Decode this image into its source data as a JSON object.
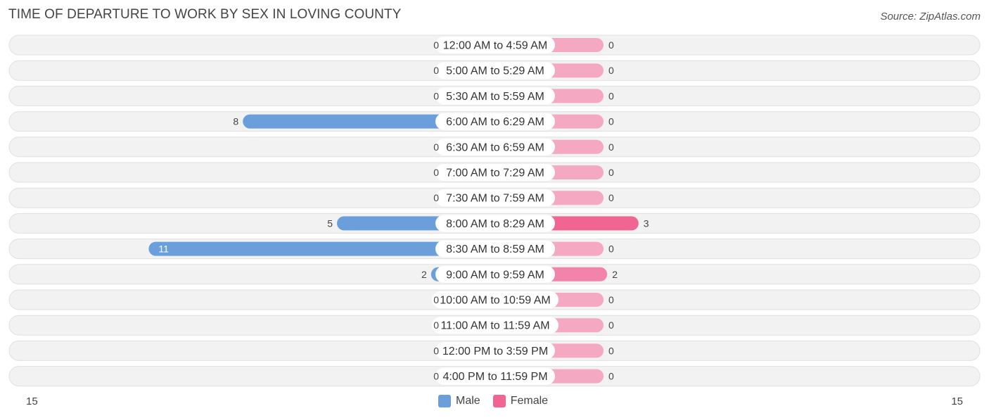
{
  "title": "TIME OF DEPARTURE TO WORK BY SEX IN LOVING COUNTY",
  "source": "Source: ZipAtlas.com",
  "colors": {
    "male_strong": "#6a9fdb",
    "male_light": "#a9c8ea",
    "female_strong": "#f06591",
    "female_light": "#f5a8c2",
    "row_bg": "#f2f2f2",
    "row_border": "#e0e0e0"
  },
  "chart_data": {
    "type": "bar",
    "orientation": "diverging-horizontal",
    "title": "TIME OF DEPARTURE TO WORK BY SEX IN LOVING COUNTY",
    "categories": [
      "12:00 AM to 4:59 AM",
      "5:00 AM to 5:29 AM",
      "5:30 AM to 5:59 AM",
      "6:00 AM to 6:29 AM",
      "6:30 AM to 6:59 AM",
      "7:00 AM to 7:29 AM",
      "7:30 AM to 7:59 AM",
      "8:00 AM to 8:29 AM",
      "8:30 AM to 8:59 AM",
      "9:00 AM to 9:59 AM",
      "10:00 AM to 10:59 AM",
      "11:00 AM to 11:59 AM",
      "12:00 PM to 3:59 PM",
      "4:00 PM to 11:59 PM"
    ],
    "series": [
      {
        "name": "Male",
        "values": [
          0,
          0,
          0,
          8,
          0,
          0,
          0,
          5,
          11,
          2,
          0,
          0,
          0,
          0
        ]
      },
      {
        "name": "Female",
        "values": [
          0,
          0,
          0,
          0,
          0,
          0,
          0,
          3,
          0,
          2,
          0,
          0,
          0,
          0
        ]
      }
    ],
    "axis_min_label": "15",
    "axis_max_label": "15",
    "xlim": [
      -15,
      15
    ],
    "legend_position": "bottom-center"
  },
  "legend": {
    "male": "Male",
    "female": "Female"
  }
}
